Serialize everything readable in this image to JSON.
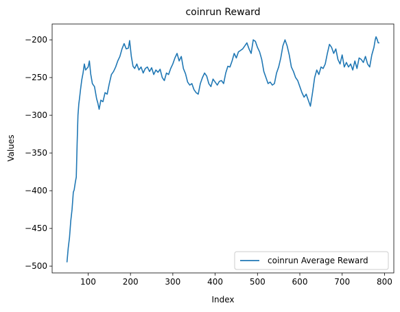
{
  "chart_data": {
    "type": "line",
    "title": "coinrun Reward",
    "xlabel": "Index",
    "ylabel": "Values",
    "xlim": [
      15,
      822
    ],
    "ylim": [
      -509,
      -179
    ],
    "xticks": [
      100,
      200,
      300,
      400,
      500,
      600,
      700,
      800
    ],
    "yticks": [
      -500,
      -450,
      -400,
      -350,
      -300,
      -250,
      -200
    ],
    "grid": false,
    "legend_position": "lower-right",
    "series": [
      {
        "name": "coinrun Average Reward",
        "color": "#1f77b4",
        "points": [
          [
            50,
            -495
          ],
          [
            53,
            -476
          ],
          [
            56,
            -462
          ],
          [
            59,
            -440
          ],
          [
            62,
            -425
          ],
          [
            65,
            -402
          ],
          [
            67,
            -399
          ],
          [
            70,
            -388
          ],
          [
            72,
            -382
          ],
          [
            74,
            -338
          ],
          [
            76,
            -300
          ],
          [
            78,
            -285
          ],
          [
            80,
            -276
          ],
          [
            82,
            -266
          ],
          [
            85,
            -253
          ],
          [
            88,
            -244
          ],
          [
            91,
            -232
          ],
          [
            94,
            -240
          ],
          [
            97,
            -238
          ],
          [
            100,
            -236
          ],
          [
            103,
            -228
          ],
          [
            106,
            -245
          ],
          [
            110,
            -258
          ],
          [
            115,
            -262
          ],
          [
            120,
            -278
          ],
          [
            123,
            -284
          ],
          [
            126,
            -292
          ],
          [
            130,
            -280
          ],
          [
            135,
            -282
          ],
          [
            140,
            -270
          ],
          [
            145,
            -272
          ],
          [
            150,
            -258
          ],
          [
            155,
            -246
          ],
          [
            160,
            -242
          ],
          [
            165,
            -236
          ],
          [
            170,
            -228
          ],
          [
            175,
            -222
          ],
          [
            180,
            -212
          ],
          [
            185,
            -205
          ],
          [
            190,
            -212
          ],
          [
            195,
            -211
          ],
          [
            198,
            -201
          ],
          [
            202,
            -222
          ],
          [
            206,
            -235
          ],
          [
            210,
            -238
          ],
          [
            215,
            -232
          ],
          [
            220,
            -240
          ],
          [
            225,
            -236
          ],
          [
            230,
            -244
          ],
          [
            235,
            -238
          ],
          [
            240,
            -236
          ],
          [
            245,
            -242
          ],
          [
            250,
            -237
          ],
          [
            255,
            -246
          ],
          [
            260,
            -240
          ],
          [
            265,
            -243
          ],
          [
            270,
            -239
          ],
          [
            275,
            -250
          ],
          [
            280,
            -254
          ],
          [
            285,
            -244
          ],
          [
            290,
            -246
          ],
          [
            295,
            -238
          ],
          [
            300,
            -232
          ],
          [
            305,
            -224
          ],
          [
            310,
            -218
          ],
          [
            315,
            -228
          ],
          [
            320,
            -222
          ],
          [
            325,
            -238
          ],
          [
            330,
            -245
          ],
          [
            335,
            -256
          ],
          [
            340,
            -260
          ],
          [
            345,
            -258
          ],
          [
            350,
            -266
          ],
          [
            355,
            -270
          ],
          [
            360,
            -272
          ],
          [
            365,
            -258
          ],
          [
            370,
            -250
          ],
          [
            375,
            -244
          ],
          [
            380,
            -248
          ],
          [
            385,
            -258
          ],
          [
            390,
            -262
          ],
          [
            395,
            -252
          ],
          [
            400,
            -256
          ],
          [
            405,
            -260
          ],
          [
            410,
            -255
          ],
          [
            415,
            -254
          ],
          [
            420,
            -258
          ],
          [
            425,
            -244
          ],
          [
            430,
            -235
          ],
          [
            435,
            -236
          ],
          [
            440,
            -228
          ],
          [
            445,
            -218
          ],
          [
            450,
            -224
          ],
          [
            455,
            -216
          ],
          [
            460,
            -214
          ],
          [
            465,
            -212
          ],
          [
            470,
            -208
          ],
          [
            475,
            -204
          ],
          [
            480,
            -212
          ],
          [
            485,
            -218
          ],
          [
            490,
            -200
          ],
          [
            495,
            -202
          ],
          [
            500,
            -210
          ],
          [
            505,
            -216
          ],
          [
            510,
            -226
          ],
          [
            515,
            -242
          ],
          [
            520,
            -250
          ],
          [
            525,
            -258
          ],
          [
            530,
            -256
          ],
          [
            535,
            -260
          ],
          [
            540,
            -258
          ],
          [
            545,
            -244
          ],
          [
            550,
            -236
          ],
          [
            555,
            -224
          ],
          [
            560,
            -208
          ],
          [
            565,
            -200
          ],
          [
            570,
            -208
          ],
          [
            575,
            -220
          ],
          [
            580,
            -236
          ],
          [
            585,
            -242
          ],
          [
            590,
            -250
          ],
          [
            595,
            -254
          ],
          [
            600,
            -262
          ],
          [
            605,
            -270
          ],
          [
            610,
            -276
          ],
          [
            615,
            -272
          ],
          [
            620,
            -280
          ],
          [
            625,
            -288
          ],
          [
            630,
            -270
          ],
          [
            635,
            -250
          ],
          [
            640,
            -240
          ],
          [
            645,
            -246
          ],
          [
            650,
            -236
          ],
          [
            655,
            -238
          ],
          [
            660,
            -232
          ],
          [
            665,
            -218
          ],
          [
            670,
            -206
          ],
          [
            675,
            -210
          ],
          [
            680,
            -218
          ],
          [
            685,
            -212
          ],
          [
            690,
            -226
          ],
          [
            695,
            -232
          ],
          [
            700,
            -220
          ],
          [
            705,
            -236
          ],
          [
            710,
            -230
          ],
          [
            715,
            -236
          ],
          [
            720,
            -232
          ],
          [
            725,
            -240
          ],
          [
            730,
            -228
          ],
          [
            735,
            -238
          ],
          [
            740,
            -224
          ],
          [
            745,
            -226
          ],
          [
            750,
            -230
          ],
          [
            755,
            -222
          ],
          [
            760,
            -232
          ],
          [
            765,
            -236
          ],
          [
            770,
            -220
          ],
          [
            775,
            -210
          ],
          [
            778,
            -200
          ],
          [
            780,
            -196
          ],
          [
            783,
            -200
          ],
          [
            785,
            -204
          ],
          [
            788,
            -204
          ]
        ]
      }
    ]
  }
}
